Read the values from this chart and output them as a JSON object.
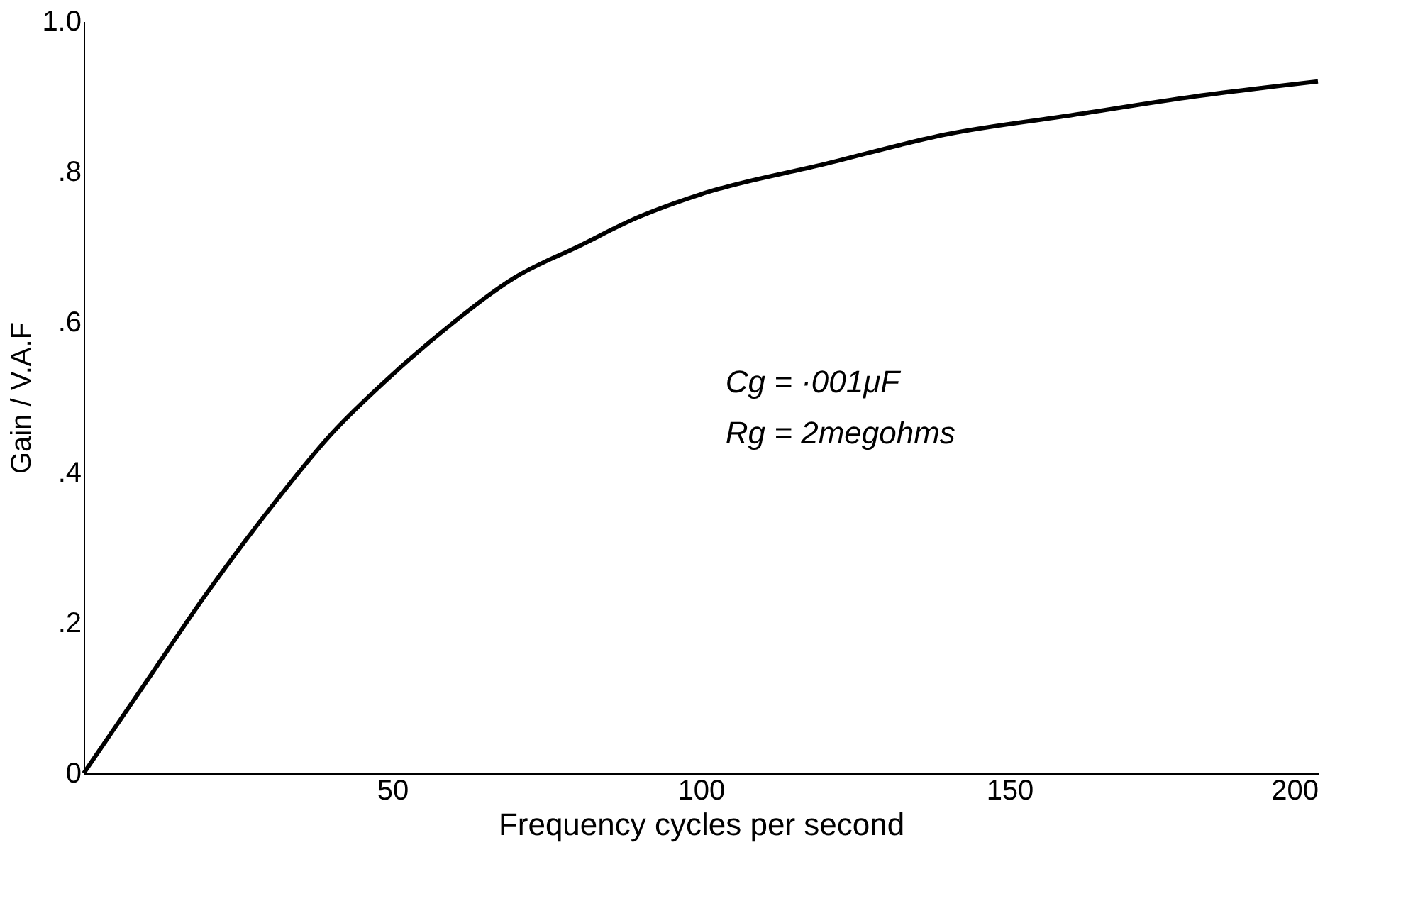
{
  "chart_data": {
    "type": "line",
    "x": [
      0,
      5,
      10,
      20,
      30,
      40,
      50,
      60,
      70,
      80,
      90,
      100,
      120,
      140,
      160,
      180,
      200
    ],
    "series": [
      {
        "color": "#000000",
        "values": [
          0,
          0.06,
          0.12,
          0.24,
          0.35,
          0.45,
          0.53,
          0.6,
          0.66,
          0.7,
          0.74,
          0.77,
          0.81,
          0.85,
          0.875,
          0.9,
          0.92
        ]
      }
    ],
    "xlabel": "Frequency cycles per second",
    "ylabel": "Gain / V.A.F",
    "xlim": [
      0,
      200
    ],
    "xticks": [
      50,
      100,
      150,
      200
    ],
    "ylim": [
      0,
      1.0
    ],
    "yticks": [
      {
        "value": 0,
        "label": "0"
      },
      {
        "value": 0.2,
        "label": ".2"
      },
      {
        "value": 0.4,
        "label": ".4"
      },
      {
        "value": 0.6,
        "label": ".6"
      },
      {
        "value": 0.8,
        "label": ".8"
      },
      {
        "value": 1.0,
        "label": "1.0"
      }
    ],
    "annotations": [
      "Cg = ·001μF",
      "Rg = 2megohms"
    ],
    "grid": false,
    "marker": "none",
    "line_style": "solid"
  }
}
